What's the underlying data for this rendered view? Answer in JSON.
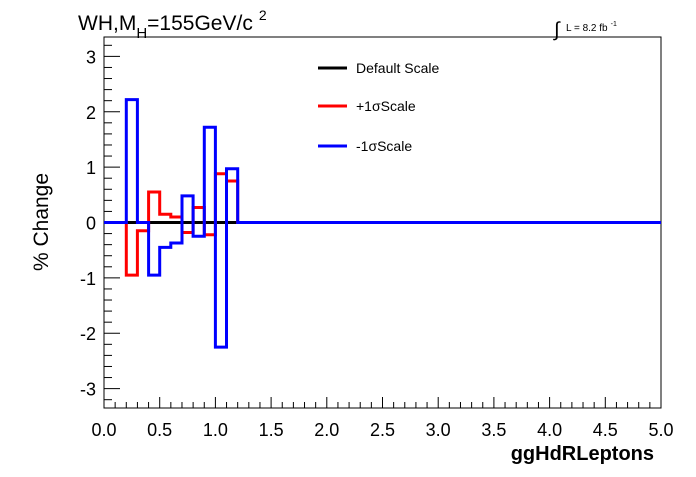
{
  "chart_data": {
    "type": "line",
    "title": "WH,M=155GeV/c",
    "title_parts": {
      "main": "WH,M",
      "subscript": "H",
      "rest": "=155GeV/c",
      "superscript": "2"
    },
    "lumi_label": {
      "integral": "∫",
      "text": "L = 8.2 fb",
      "superscript": "-1"
    },
    "xlabel": "ggHdRLeptons",
    "ylabel": "% Change",
    "xlim": [
      0.0,
      5.0
    ],
    "ylim": [
      -3.35,
      3.35
    ],
    "xticks": [
      0.0,
      0.5,
      1.0,
      1.5,
      2.0,
      2.5,
      3.0,
      3.5,
      4.0,
      4.5,
      5.0
    ],
    "xtick_labels": [
      "0.0",
      "0.5",
      "1.0",
      "1.5",
      "2.0",
      "2.5",
      "3.0",
      "3.5",
      "4.0",
      "4.5",
      "5.0"
    ],
    "yticks": [
      -3,
      -2,
      -1,
      0,
      1,
      2,
      3
    ],
    "ytick_labels": [
      "-3",
      "-2",
      "-1",
      "0",
      "1",
      "2",
      "3"
    ],
    "bin_edges": [
      0.0,
      0.1,
      0.2,
      0.3,
      0.4,
      0.5,
      0.6,
      0.7,
      0.8,
      0.9,
      1.0,
      1.1,
      1.2,
      1.3,
      1.4,
      1.5,
      1.6,
      1.7,
      1.8,
      1.9,
      2.0,
      2.1,
      2.2,
      2.3,
      2.4,
      2.5,
      2.6,
      2.7,
      2.8,
      2.9,
      3.0,
      3.1,
      3.2,
      3.3,
      3.4,
      3.5,
      3.6,
      3.7,
      3.8,
      3.9,
      4.0,
      4.1,
      4.2,
      4.3,
      4.4,
      4.5,
      4.6,
      4.7,
      4.8,
      4.9,
      5.0
    ],
    "series": [
      {
        "name": "Default Scale",
        "color": "#000000",
        "values": [
          0,
          0,
          0,
          0,
          0,
          0,
          0,
          0,
          0,
          0,
          0,
          0,
          0,
          0,
          0,
          0,
          0,
          0,
          0,
          0,
          0,
          0,
          0,
          0,
          0,
          0,
          0,
          0,
          0,
          0,
          0,
          0,
          0,
          0,
          0,
          0,
          0,
          0,
          0,
          0,
          0,
          0,
          0,
          0,
          0,
          0,
          0,
          0,
          0,
          0
        ]
      },
      {
        "name": "+1σScale",
        "color": "#ff0000",
        "values": [
          0,
          0,
          -0.95,
          -0.15,
          0.55,
          0.15,
          0.1,
          -0.18,
          0.27,
          -0.22,
          0.88,
          0.75,
          0,
          0,
          0,
          0,
          0,
          0,
          0,
          0,
          0,
          0,
          0,
          0,
          0,
          0,
          0,
          0,
          0,
          0,
          0,
          0,
          0,
          0,
          0,
          0,
          0,
          0,
          0,
          0,
          0,
          0,
          0,
          0,
          0,
          0,
          0,
          0,
          0,
          0
        ]
      },
      {
        "name": "-1σScale",
        "color": "#0000ff",
        "values": [
          0,
          0,
          2.22,
          0,
          -0.95,
          -0.45,
          -0.37,
          0.48,
          -0.25,
          1.72,
          -2.25,
          0.97,
          0,
          0,
          0,
          0,
          0,
          0,
          0,
          0,
          0,
          0,
          0,
          0,
          0,
          0,
          0,
          0,
          0,
          0,
          0,
          0,
          0,
          0,
          0,
          0,
          0,
          0,
          0,
          0,
          0,
          0,
          0,
          0,
          0,
          0,
          0,
          0,
          0,
          0
        ]
      }
    ],
    "legend": "top-center",
    "grid": false
  }
}
